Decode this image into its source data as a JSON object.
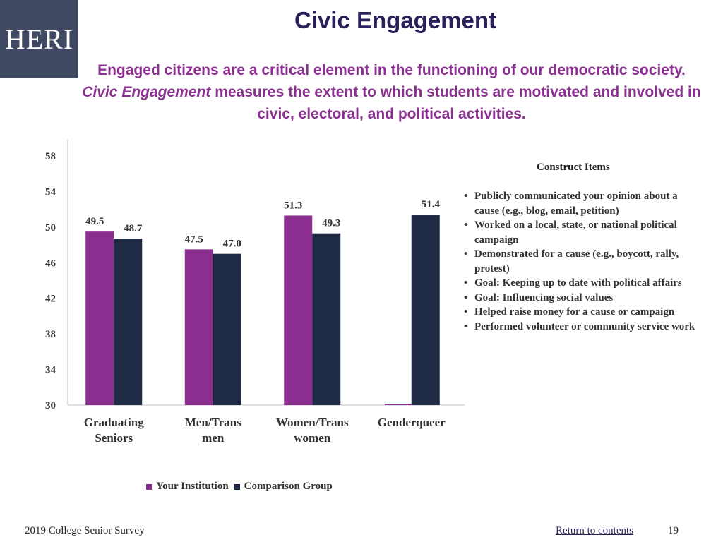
{
  "logo": {
    "text": "HERI"
  },
  "slide": {
    "title": "Civic Engagement",
    "subtitle_part1": "Engaged citizens are a critical element in the functioning of our democratic society. ",
    "subtitle_em": "Civic Engagement",
    "subtitle_part2": " measures the extent to which students are motivated and involved in civic, electoral, and political activities."
  },
  "construct_items": {
    "title": "Construct Items",
    "items": [
      "Publicly communicated your opinion about a cause (e.g., blog, email, petition)",
      "Worked on a local, state, or national political campaign",
      "Demonstrated for a cause (e.g., boycott, rally, protest)",
      "Goal: Keeping up to date with political affairs",
      "Goal: Influencing social values",
      "Helped raise money for a cause or campaign",
      "Performed volunteer or community service work"
    ]
  },
  "footer": {
    "survey": "2019 College Senior Survey",
    "return_link": "Return to contents",
    "page_number": "19"
  },
  "colors": {
    "institution": "#8b2e8f",
    "comparison": "#1f2a44"
  },
  "chart_data": {
    "type": "bar",
    "title": "",
    "categories": [
      [
        "Graduating",
        "Seniors"
      ],
      [
        "Men/Trans",
        "men"
      ],
      [
        "Women/Trans",
        "women"
      ],
      [
        "Genderqueer"
      ]
    ],
    "series": [
      {
        "name": "Your Institution",
        "values": [
          49.5,
          47.5,
          51.3,
          null
        ],
        "labels": [
          "49.5",
          "47.5",
          "51.3",
          ""
        ]
      },
      {
        "name": "Comparison Group",
        "values": [
          48.7,
          47.0,
          49.3,
          51.4
        ],
        "labels": [
          "48.7",
          "47.0",
          "49.3",
          "51.4"
        ]
      }
    ],
    "ylim": [
      30,
      58
    ],
    "yticks": [
      "30",
      "34",
      "38",
      "42",
      "46",
      "50",
      "54",
      "58"
    ],
    "xlabel": "",
    "ylabel": "",
    "legend_position": "bottom"
  }
}
